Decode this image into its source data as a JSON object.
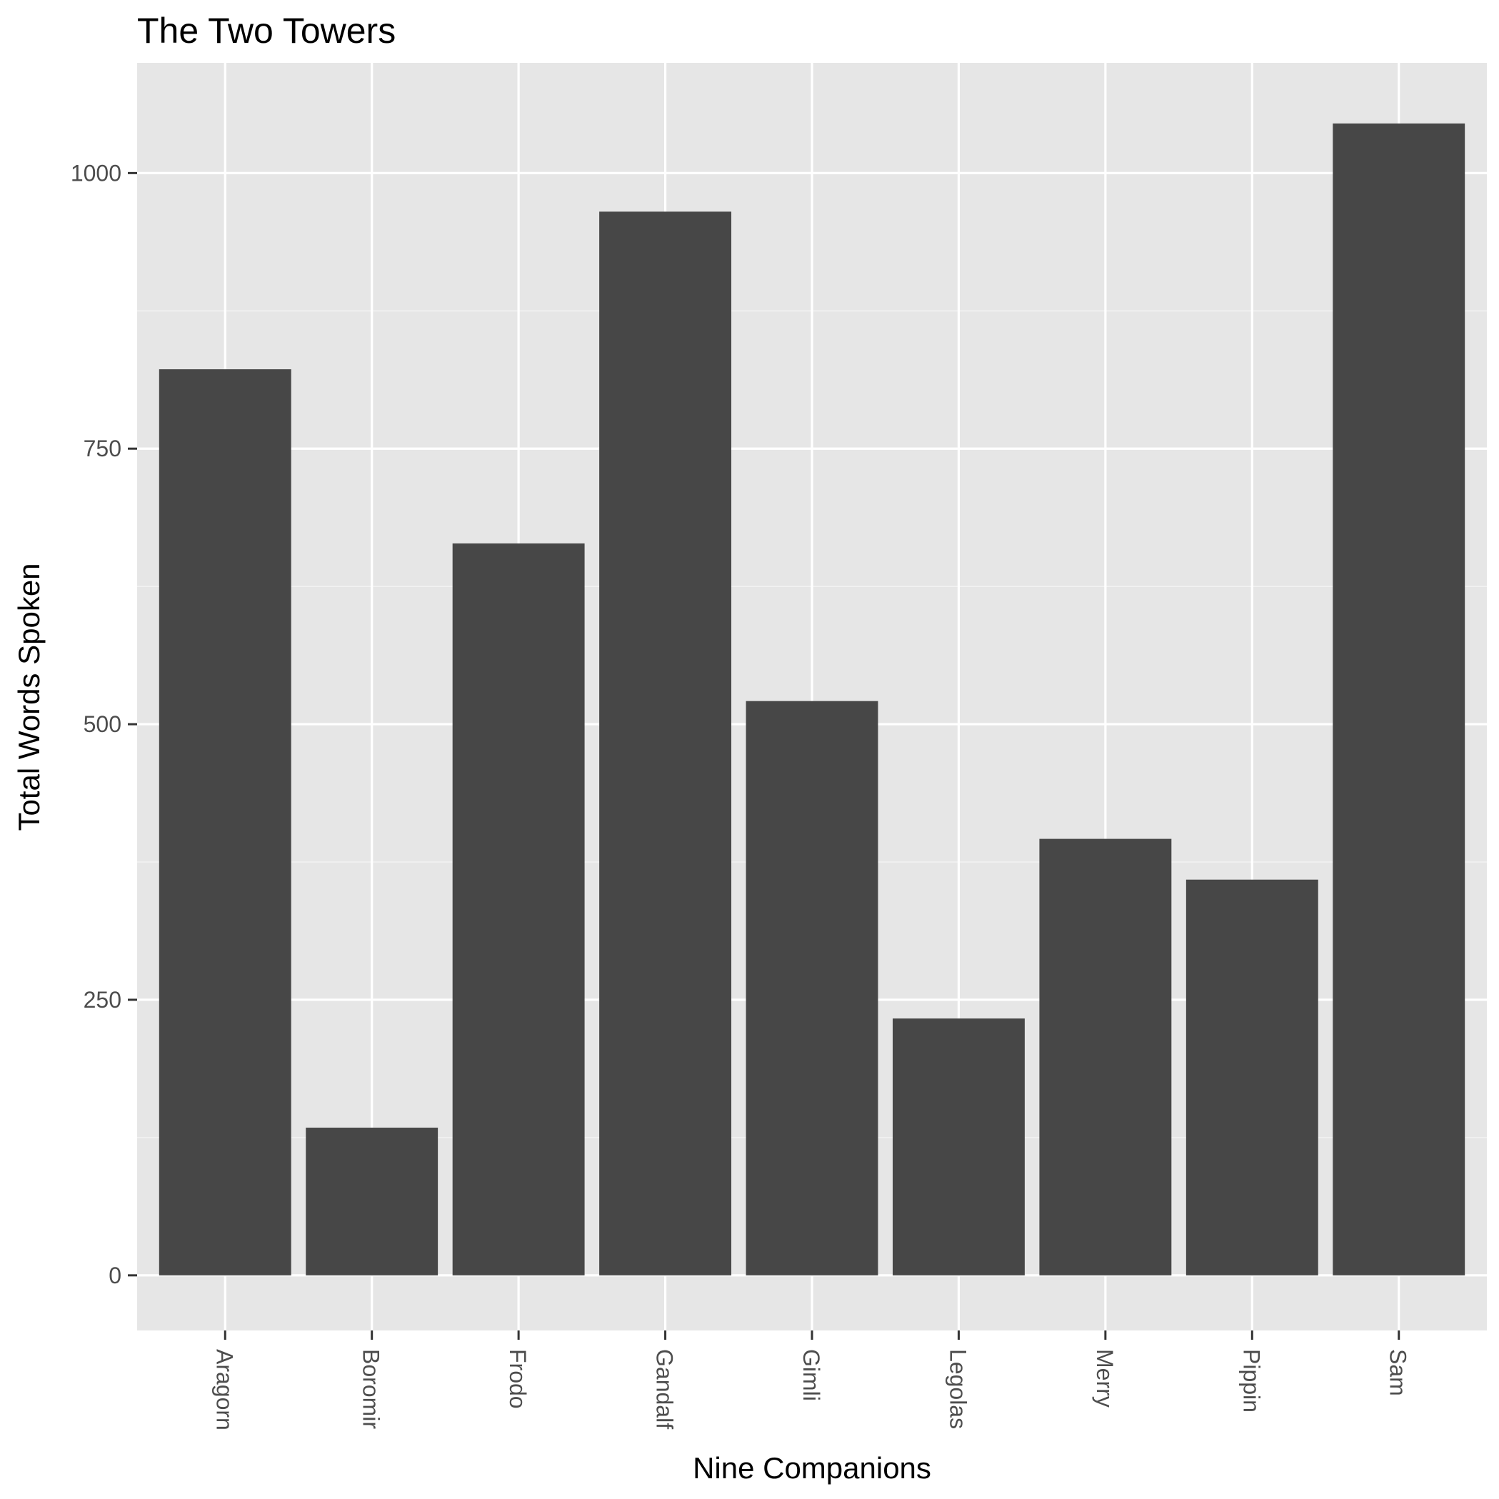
{
  "chart_data": {
    "type": "bar",
    "title": "The Two Towers",
    "xlabel": "Nine Companions",
    "ylabel": "Total Words Spoken",
    "categories": [
      "Aragorn",
      "Boromir",
      "Frodo",
      "Gandalf",
      "Gimli",
      "Legolas",
      "Merry",
      "Pippin",
      "Sam"
    ],
    "values": [
      822,
      134,
      664,
      965,
      521,
      233,
      396,
      359,
      1045
    ],
    "ylim": [
      -50,
      1100
    ],
    "yticks": [
      0,
      250,
      500,
      750,
      1000
    ],
    "grid": true,
    "legend": "none",
    "colors": {
      "bar": "#474747",
      "panel": "#e6e6e6",
      "grid_major": "#ffffff",
      "grid_minor": "#f2f2f2",
      "tick": "#333333",
      "tick_label": "#4d4d4d"
    }
  }
}
